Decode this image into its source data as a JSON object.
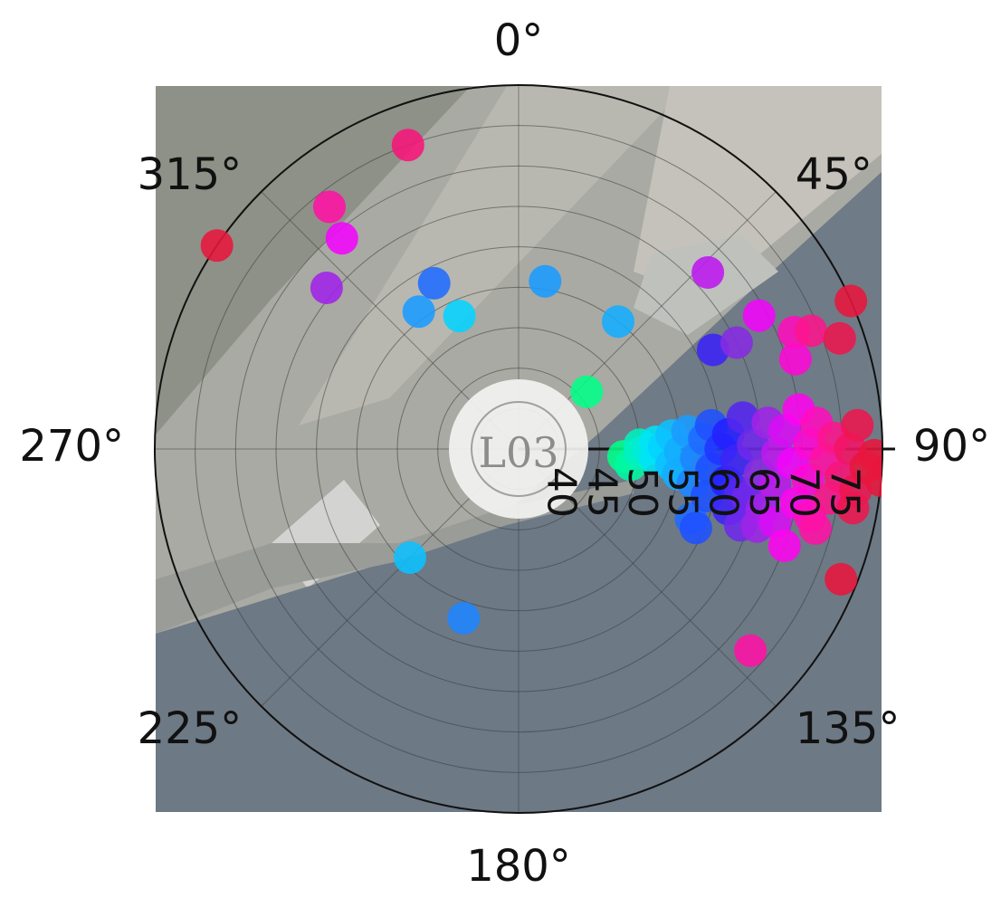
{
  "chart_data": {
    "type": "scatter",
    "coordinate_system": "polar",
    "angular_axis": {
      "unit": "degrees",
      "direction": "clockwise",
      "zero_at": "top",
      "tick_labels": [
        "0°",
        "45°",
        "90°",
        "135°",
        "180°",
        "225°",
        "270°",
        "315°"
      ]
    },
    "radial_axis": {
      "range": [
        35,
        80
      ],
      "tick_values": [
        40,
        45,
        50,
        55,
        60,
        65,
        70,
        75
      ],
      "tick_labels": [
        "40",
        "45",
        "50",
        "55",
        "60",
        "65",
        "70",
        "75"
      ],
      "label_angle_deg": 90,
      "label_orientation": "rotated"
    },
    "center_marker": "L03",
    "background": "aerial-photo",
    "grid": true,
    "colorscale": [
      "#00ff88",
      "#00e0ff",
      "#1e90ff",
      "#2020ff",
      "#8a2be2",
      "#ff00ff",
      "#ff1493",
      "#e8163c"
    ],
    "color_range": [
      48,
      78
    ],
    "points": [
      {
        "theta": 340,
        "r": 75
      },
      {
        "theta": 322,
        "r": 73
      },
      {
        "theta": 320,
        "r": 69
      },
      {
        "theta": 304,
        "r": 80
      },
      {
        "theta": 310,
        "r": 66
      },
      {
        "theta": 333,
        "r": 58
      },
      {
        "theta": 324,
        "r": 56
      },
      {
        "theta": 336,
        "r": 53
      },
      {
        "theta": 9,
        "r": 56
      },
      {
        "theta": 47,
        "r": 67
      },
      {
        "theta": 38,
        "r": 55
      },
      {
        "theta": 50,
        "r": 46
      },
      {
        "theta": 61,
        "r": 69
      },
      {
        "theta": 66,
        "r": 80
      },
      {
        "theta": 63,
        "r": 62
      },
      {
        "theta": 64,
        "r": 65
      },
      {
        "theta": 67,
        "r": 72
      },
      {
        "theta": 68,
        "r": 74
      },
      {
        "theta": 71,
        "r": 77
      },
      {
        "theta": 72,
        "r": 71
      },
      {
        "theta": 93,
        "r": 81
      },
      {
        "theta": 112,
        "r": 78
      },
      {
        "theta": 114,
        "r": 59
      },
      {
        "theta": 112,
        "r": 58
      },
      {
        "theta": 131,
        "r": 73
      },
      {
        "theta": 225,
        "r": 54
      },
      {
        "theta": 198,
        "r": 57
      },
      {
        "theta": 88,
        "r": 50
      },
      {
        "theta": 90,
        "r": 51
      },
      {
        "theta": 92,
        "r": 50
      },
      {
        "theta": 87,
        "r": 52
      },
      {
        "theta": 94,
        "r": 52
      },
      {
        "theta": 89,
        "r": 53
      },
      {
        "theta": 96,
        "r": 54
      },
      {
        "theta": 85,
        "r": 54
      },
      {
        "theta": 91,
        "r": 55
      },
      {
        "theta": 99,
        "r": 55
      },
      {
        "theta": 84,
        "r": 56
      },
      {
        "theta": 93,
        "r": 57
      },
      {
        "theta": 101,
        "r": 57
      },
      {
        "theta": 87,
        "r": 58
      },
      {
        "theta": 96,
        "r": 59
      },
      {
        "theta": 104,
        "r": 59
      },
      {
        "theta": 83,
        "r": 59
      },
      {
        "theta": 90,
        "r": 60
      },
      {
        "theta": 99,
        "r": 61
      },
      {
        "theta": 106,
        "r": 62
      },
      {
        "theta": 86,
        "r": 61
      },
      {
        "theta": 93,
        "r": 62
      },
      {
        "theta": 101,
        "r": 63
      },
      {
        "theta": 109,
        "r": 64
      },
      {
        "theta": 82,
        "r": 63
      },
      {
        "theta": 89,
        "r": 64
      },
      {
        "theta": 96,
        "r": 65
      },
      {
        "theta": 104,
        "r": 66
      },
      {
        "theta": 84,
        "r": 66
      },
      {
        "theta": 91,
        "r": 67
      },
      {
        "theta": 98,
        "r": 67
      },
      {
        "theta": 106,
        "r": 68
      },
      {
        "theta": 86,
        "r": 68
      },
      {
        "theta": 93,
        "r": 69
      },
      {
        "theta": 101,
        "r": 70
      },
      {
        "theta": 82,
        "r": 70
      },
      {
        "theta": 89,
        "r": 71
      },
      {
        "theta": 96,
        "r": 71
      },
      {
        "theta": 103,
        "r": 72
      },
      {
        "theta": 85,
        "r": 72
      },
      {
        "theta": 92,
        "r": 73
      },
      {
        "theta": 99,
        "r": 74
      },
      {
        "theta": 88,
        "r": 74
      },
      {
        "theta": 95,
        "r": 75
      },
      {
        "theta": 90,
        "r": 76
      },
      {
        "theta": 97,
        "r": 77
      },
      {
        "theta": 86,
        "r": 77
      },
      {
        "theta": 93,
        "r": 78
      },
      {
        "theta": 91,
        "r": 79
      },
      {
        "theta": 95,
        "r": 80
      },
      {
        "theta": 102,
        "r": 64
      },
      {
        "theta": 108,
        "r": 66
      },
      {
        "theta": 110,
        "r": 70
      },
      {
        "theta": 105,
        "r": 73
      },
      {
        "theta": 100,
        "r": 77
      },
      {
        "theta": 94,
        "r": 48
      },
      {
        "theta": 98,
        "r": 49
      }
    ]
  }
}
